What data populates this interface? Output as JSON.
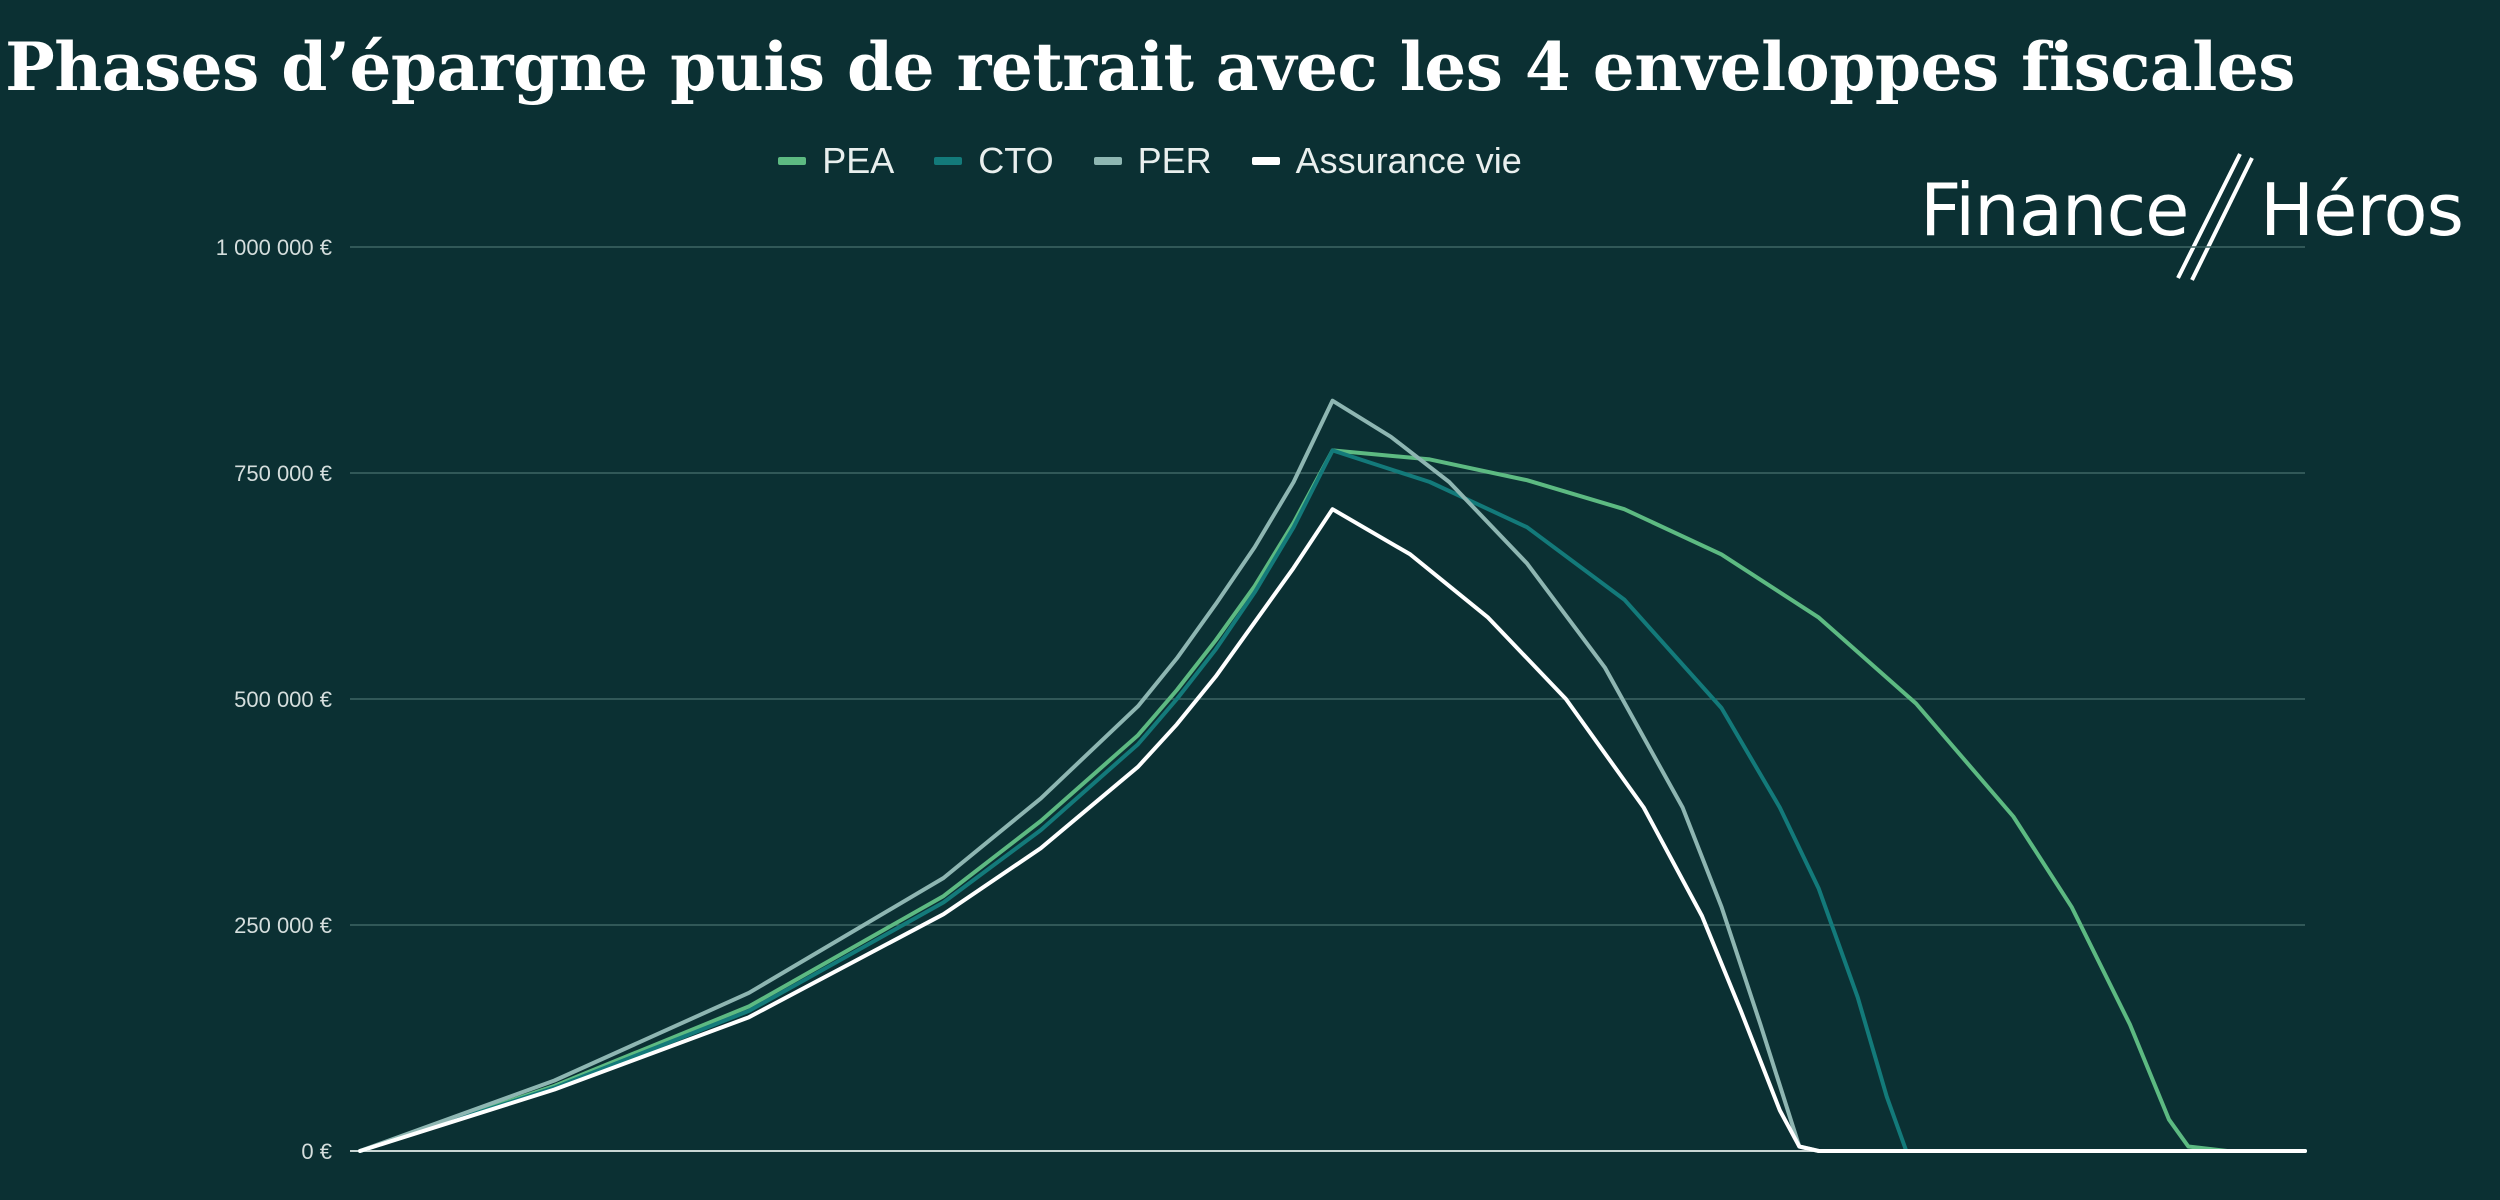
{
  "title": "Phases d’épargne puis de retrait avec les 4 enveloppes fiscales",
  "logo": {
    "left": "Finance",
    "right": "Héros"
  },
  "chart_data": {
    "type": "line",
    "title": "Phases d’épargne puis de retrait avec les 4 enveloppes fiscales",
    "xlabel": "",
    "ylabel": "",
    "xlim": [
      0,
      100
    ],
    "ylim": [
      0,
      1000000
    ],
    "yticks": [
      0,
      250000,
      500000,
      750000,
      1000000
    ],
    "ytick_labels": [
      "0 €",
      "250 000 €",
      "500 000 €",
      "750 000 €",
      "1 000 000 €"
    ],
    "grid": true,
    "legend_position": "top",
    "series": [
      {
        "name": "PEA",
        "color": "#5dba82",
        "points": [
          [
            0,
            0
          ],
          [
            10,
            72000
          ],
          [
            20,
            160000
          ],
          [
            30,
            282000
          ],
          [
            35,
            365000
          ],
          [
            40,
            460000
          ],
          [
            42,
            510000
          ],
          [
            44,
            565000
          ],
          [
            46,
            625000
          ],
          [
            48,
            695000
          ],
          [
            50,
            775000
          ],
          [
            55,
            765000
          ],
          [
            60,
            742000
          ],
          [
            65,
            710000
          ],
          [
            70,
            660000
          ],
          [
            75,
            590000
          ],
          [
            80,
            495000
          ],
          [
            85,
            370000
          ],
          [
            88,
            270000
          ],
          [
            91,
            140000
          ],
          [
            93,
            35000
          ],
          [
            94,
            5000
          ],
          [
            96,
            0
          ],
          [
            100,
            0
          ]
        ]
      },
      {
        "name": "CTO",
        "color": "#137a7a",
        "points": [
          [
            0,
            0
          ],
          [
            10,
            70000
          ],
          [
            20,
            155000
          ],
          [
            30,
            275000
          ],
          [
            35,
            355000
          ],
          [
            40,
            450000
          ],
          [
            42,
            500000
          ],
          [
            44,
            555000
          ],
          [
            46,
            618000
          ],
          [
            48,
            690000
          ],
          [
            50,
            775000
          ],
          [
            55,
            740000
          ],
          [
            60,
            690000
          ],
          [
            65,
            610000
          ],
          [
            70,
            490000
          ],
          [
            73,
            380000
          ],
          [
            75,
            290000
          ],
          [
            77,
            170000
          ],
          [
            78.5,
            60000
          ],
          [
            79.5,
            0
          ],
          [
            100,
            0
          ]
        ]
      },
      {
        "name": "PER",
        "color": "#8eb6b2",
        "points": [
          [
            0,
            0
          ],
          [
            10,
            78000
          ],
          [
            20,
            175000
          ],
          [
            30,
            302000
          ],
          [
            35,
            390000
          ],
          [
            40,
            492000
          ],
          [
            42,
            545000
          ],
          [
            44,
            605000
          ],
          [
            46,
            668000
          ],
          [
            48,
            740000
          ],
          [
            50,
            830000
          ],
          [
            53,
            790000
          ],
          [
            56,
            740000
          ],
          [
            60,
            650000
          ],
          [
            64,
            535000
          ],
          [
            68,
            380000
          ],
          [
            70,
            270000
          ],
          [
            72,
            140000
          ],
          [
            74,
            5000
          ],
          [
            75,
            0
          ],
          [
            100,
            0
          ]
        ]
      },
      {
        "name": "Assurance vie",
        "color": "#ffffff",
        "points": [
          [
            0,
            0
          ],
          [
            10,
            68000
          ],
          [
            20,
            148000
          ],
          [
            30,
            262000
          ],
          [
            35,
            335000
          ],
          [
            40,
            425000
          ],
          [
            42,
            472000
          ],
          [
            44,
            525000
          ],
          [
            46,
            585000
          ],
          [
            48,
            645000
          ],
          [
            50,
            710000
          ],
          [
            54,
            660000
          ],
          [
            58,
            590000
          ],
          [
            62,
            500000
          ],
          [
            66,
            380000
          ],
          [
            69,
            260000
          ],
          [
            71,
            155000
          ],
          [
            73,
            45000
          ],
          [
            74,
            5000
          ],
          [
            75,
            0
          ],
          [
            100,
            0
          ]
        ]
      }
    ]
  }
}
